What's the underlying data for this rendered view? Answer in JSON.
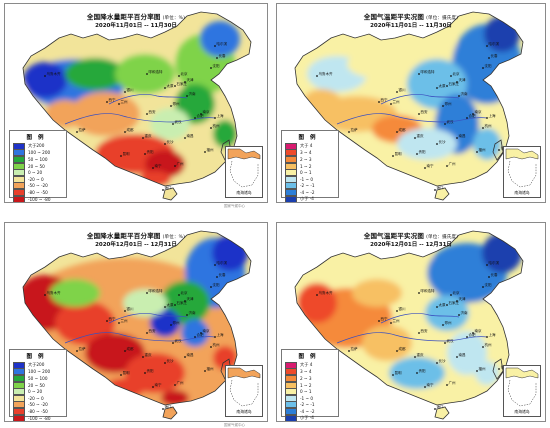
{
  "panels": [
    {
      "kind": "precip",
      "title": "全国降水量距平百分率图",
      "unit": "(单位：%)",
      "period": "2020年11月01日 -- 11月30日",
      "legend_title": "图例",
      "legend": [
        {
          "label": "大于200",
          "color": "#1f33c8"
        },
        {
          "label": "100 ~ 200",
          "color": "#2f74e0"
        },
        {
          "label": "50 ~ 100",
          "color": "#25a83a"
        },
        {
          "label": "20 ~ 50",
          "color": "#7fd34a"
        },
        {
          "label": "0 ~ 20",
          "color": "#c9eeb0"
        },
        {
          "label": "-20 ~ 0",
          "color": "#f2e49a"
        },
        {
          "label": "-50 ~ -20",
          "color": "#f2a35a"
        },
        {
          "label": "-80 ~ -50",
          "color": "#e8402c"
        },
        {
          "label": "-100 ~ -80",
          "color": "#c8161a"
        }
      ]
    },
    {
      "kind": "temp",
      "title": "全国气温距平实况图",
      "unit": "(单位：摄氏度)",
      "period": "2020年11月01日 -- 11月30日",
      "legend_title": "图例",
      "legend": [
        {
          "label": "大于 4",
          "color": "#d81b6f"
        },
        {
          "label": "3 ~ 4",
          "color": "#ee4a2a"
        },
        {
          "label": "2 ~ 3",
          "color": "#f58a3a"
        },
        {
          "label": "1 ~ 2",
          "color": "#f7c063"
        },
        {
          "label": "0 ~ 1",
          "color": "#f9f1a5"
        },
        {
          "label": "-1 ~ 0",
          "color": "#bfe6f0"
        },
        {
          "label": "-2 ~ -1",
          "color": "#6cbfe8"
        },
        {
          "label": "-4 ~ -2",
          "color": "#2d7fd8"
        },
        {
          "label": "小于 -4",
          "color": "#1a3fae"
        }
      ]
    },
    {
      "kind": "precip",
      "title": "全国降水量距平百分率图",
      "unit": "(单位：%)",
      "period": "2020年12月01日 -- 12月31日",
      "legend_title": "图例",
      "legend": [
        {
          "label": "大于200",
          "color": "#1f33c8"
        },
        {
          "label": "100 ~ 200",
          "color": "#2f74e0"
        },
        {
          "label": "50 ~ 100",
          "color": "#25a83a"
        },
        {
          "label": "20 ~ 50",
          "color": "#7fd34a"
        },
        {
          "label": "0 ~ 20",
          "color": "#c9eeb0"
        },
        {
          "label": "-20 ~ 0",
          "color": "#f2e49a"
        },
        {
          "label": "-50 ~ -20",
          "color": "#f2a35a"
        },
        {
          "label": "-80 ~ -50",
          "color": "#e8402c"
        },
        {
          "label": "-100 ~ -80",
          "color": "#c8161a"
        }
      ]
    },
    {
      "kind": "temp",
      "title": "全国气温距平实况图",
      "unit": "(单位：摄氏度)",
      "period": "2020年12月01日 -- 12月31日",
      "legend_title": "图例",
      "legend": [
        {
          "label": "大于 4",
          "color": "#d81b6f"
        },
        {
          "label": "3 ~ 4",
          "color": "#ee4a2a"
        },
        {
          "label": "2 ~ 3",
          "color": "#f58a3a"
        },
        {
          "label": "1 ~ 2",
          "color": "#f7c063"
        },
        {
          "label": "0 ~ 1",
          "color": "#f9f1a5"
        },
        {
          "label": "-1 ~ 0",
          "color": "#bfe6f0"
        },
        {
          "label": "-2 ~ -1",
          "color": "#6cbfe8"
        },
        {
          "label": "-4 ~ -2",
          "color": "#2d7fd8"
        },
        {
          "label": "小于 -4",
          "color": "#1a3fae"
        }
      ]
    }
  ],
  "inset_caption": "南海诸岛",
  "cities": [
    "乌鲁木齐",
    "拉萨",
    "西宁",
    "兰州",
    "银川",
    "呼和浩特",
    "哈尔滨",
    "长春",
    "沈阳",
    "北京",
    "天津",
    "石家庄",
    "太原",
    "济南",
    "郑州",
    "西安",
    "成都",
    "重庆",
    "武汉",
    "长沙",
    "南京",
    "上海",
    "杭州",
    "合肥",
    "南昌",
    "福州",
    "广州",
    "南宁",
    "贵阳",
    "昆明",
    "海口",
    "台北"
  ],
  "footnotes": [
    "国家气候中心",
    "国家气候中心"
  ]
}
